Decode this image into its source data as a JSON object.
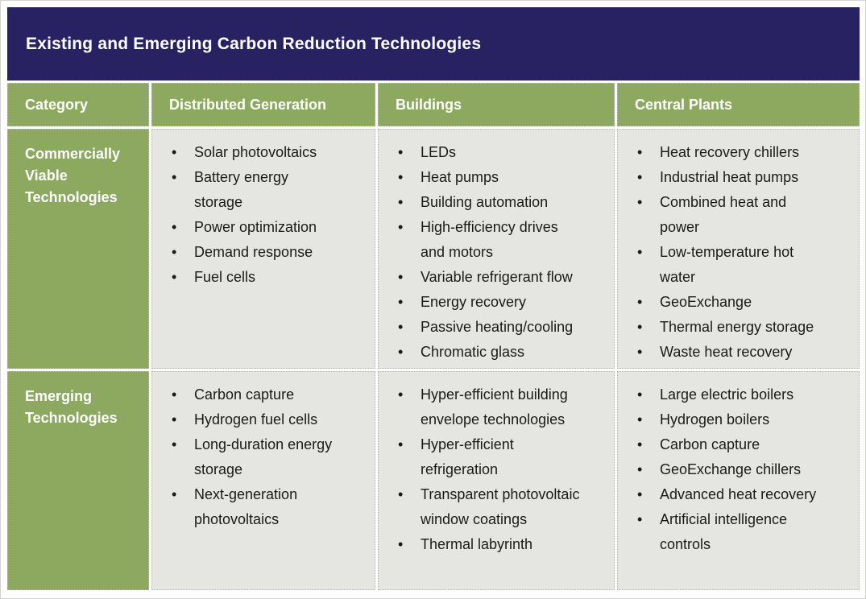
{
  "title": "Existing and Emerging Carbon Reduction Technologies",
  "colors": {
    "title_bar_background": "#282263",
    "header_row_background": "#8CA95F",
    "body_cell_background": "#E5E6E1",
    "title_text": "#FFFFFF",
    "header_text": "#FFFFFF",
    "body_text": "#1A1A18"
  },
  "table": {
    "columns": [
      "Category",
      "Distributed Generation",
      "Buildings",
      "Central Plants"
    ],
    "rows": [
      {
        "category": "Commercially Viable Technologies",
        "cells": [
          [
            "Solar photovoltaics",
            "Battery energy storage",
            "Power optimization",
            "Demand response",
            "Fuel cells"
          ],
          [
            "LEDs",
            "Heat pumps",
            "Building automation",
            "High-efficiency drives and motors",
            "Variable refrigerant flow",
            "Energy recovery",
            "Passive heating/cooling",
            "Chromatic glass"
          ],
          [
            "Heat recovery chillers",
            "Industrial heat pumps",
            "Combined heat and power",
            "Low-temperature hot water",
            "GeoExchange",
            "Thermal energy storage",
            "Waste heat recovery"
          ]
        ]
      },
      {
        "category": "Emerging Technologies",
        "cells": [
          [
            "Carbon capture",
            "Hydrogen fuel cells",
            "Long-duration energy storage",
            "Next-generation photovoltaics"
          ],
          [
            "Hyper-efficient building envelope technologies",
            "Hyper-efficient refrigeration",
            "Transparent photovoltaic window coatings",
            "Thermal labyrinth"
          ],
          [
            "Large electric boilers",
            "Hydrogen boilers",
            "Carbon capture",
            "GeoExchange chillers",
            "Advanced heat recovery",
            "Artificial intelligence controls"
          ]
        ]
      }
    ]
  }
}
